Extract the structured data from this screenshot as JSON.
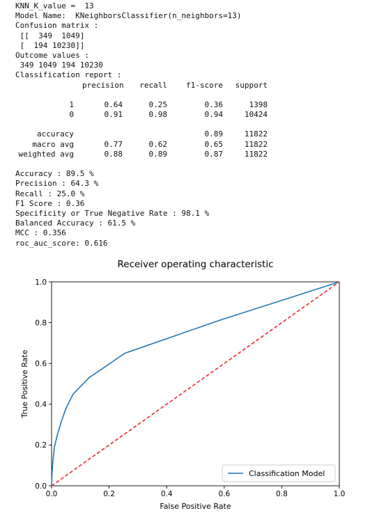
{
  "console": {
    "lines_top": [
      "KNN_K_value =  13",
      "Model Name:  KNeighborsClassifier(n_neighbors=13)",
      "Confusion matrix :",
      " [[  349  1049]",
      " [  194 10230]]",
      "Outcome values :",
      " 349 1049 194 10230",
      "Classification report :"
    ],
    "report": {
      "header": [
        "",
        "precision",
        "recall",
        "f1-score",
        "support"
      ],
      "class_rows": [
        [
          "1",
          "0.64",
          "0.25",
          "0.36",
          "1398"
        ],
        [
          "0",
          "0.91",
          "0.98",
          "0.94",
          "10424"
        ]
      ],
      "summary_rows": [
        [
          "accuracy",
          "",
          "",
          "0.89",
          "11822"
        ],
        [
          "macro avg",
          "0.77",
          "0.62",
          "0.65",
          "11822"
        ],
        [
          "weighted avg",
          "0.88",
          "0.89",
          "0.87",
          "11822"
        ]
      ]
    },
    "lines_bottom": [
      "Accuracy : 89.5 %",
      "Precision : 64.3 %",
      "Recall : 25.0 %",
      "F1 Score : 0.36",
      "Specificity or True Negative Rate : 98.1 %",
      "Balanced Accuracy : 61.5 %",
      "MCC : 0.356",
      "roc_auc_score: 0.616"
    ]
  },
  "chart_data": {
    "type": "line",
    "title": "Receiver operating characteristic",
    "xlabel": "False Positive Rate",
    "ylabel": "True Positive Rate",
    "xlim": [
      0,
      1
    ],
    "ylim": [
      0,
      1
    ],
    "xticks": [
      "0.0",
      "0.2",
      "0.4",
      "0.6",
      "0.8",
      "1.0"
    ],
    "yticks": [
      "0.0",
      "0.2",
      "0.4",
      "0.6",
      "0.8",
      "1.0"
    ],
    "grid": false,
    "legend_position": "lower-right",
    "series": [
      {
        "name": "Classification Model",
        "color": "#1f77b4",
        "style": "solid",
        "x": [
          0.0,
          0.002,
          0.005,
          0.01,
          0.02,
          0.035,
          0.05,
          0.075,
          0.13,
          0.255,
          0.58,
          1.0
        ],
        "y": [
          0.0,
          0.07,
          0.13,
          0.19,
          0.25,
          0.32,
          0.38,
          0.45,
          0.53,
          0.65,
          0.81,
          1.0
        ]
      },
      {
        "name": "",
        "color": "#e8282b",
        "style": "dashed",
        "x": [
          0.0,
          1.0
        ],
        "y": [
          0.0,
          1.0
        ]
      }
    ]
  }
}
